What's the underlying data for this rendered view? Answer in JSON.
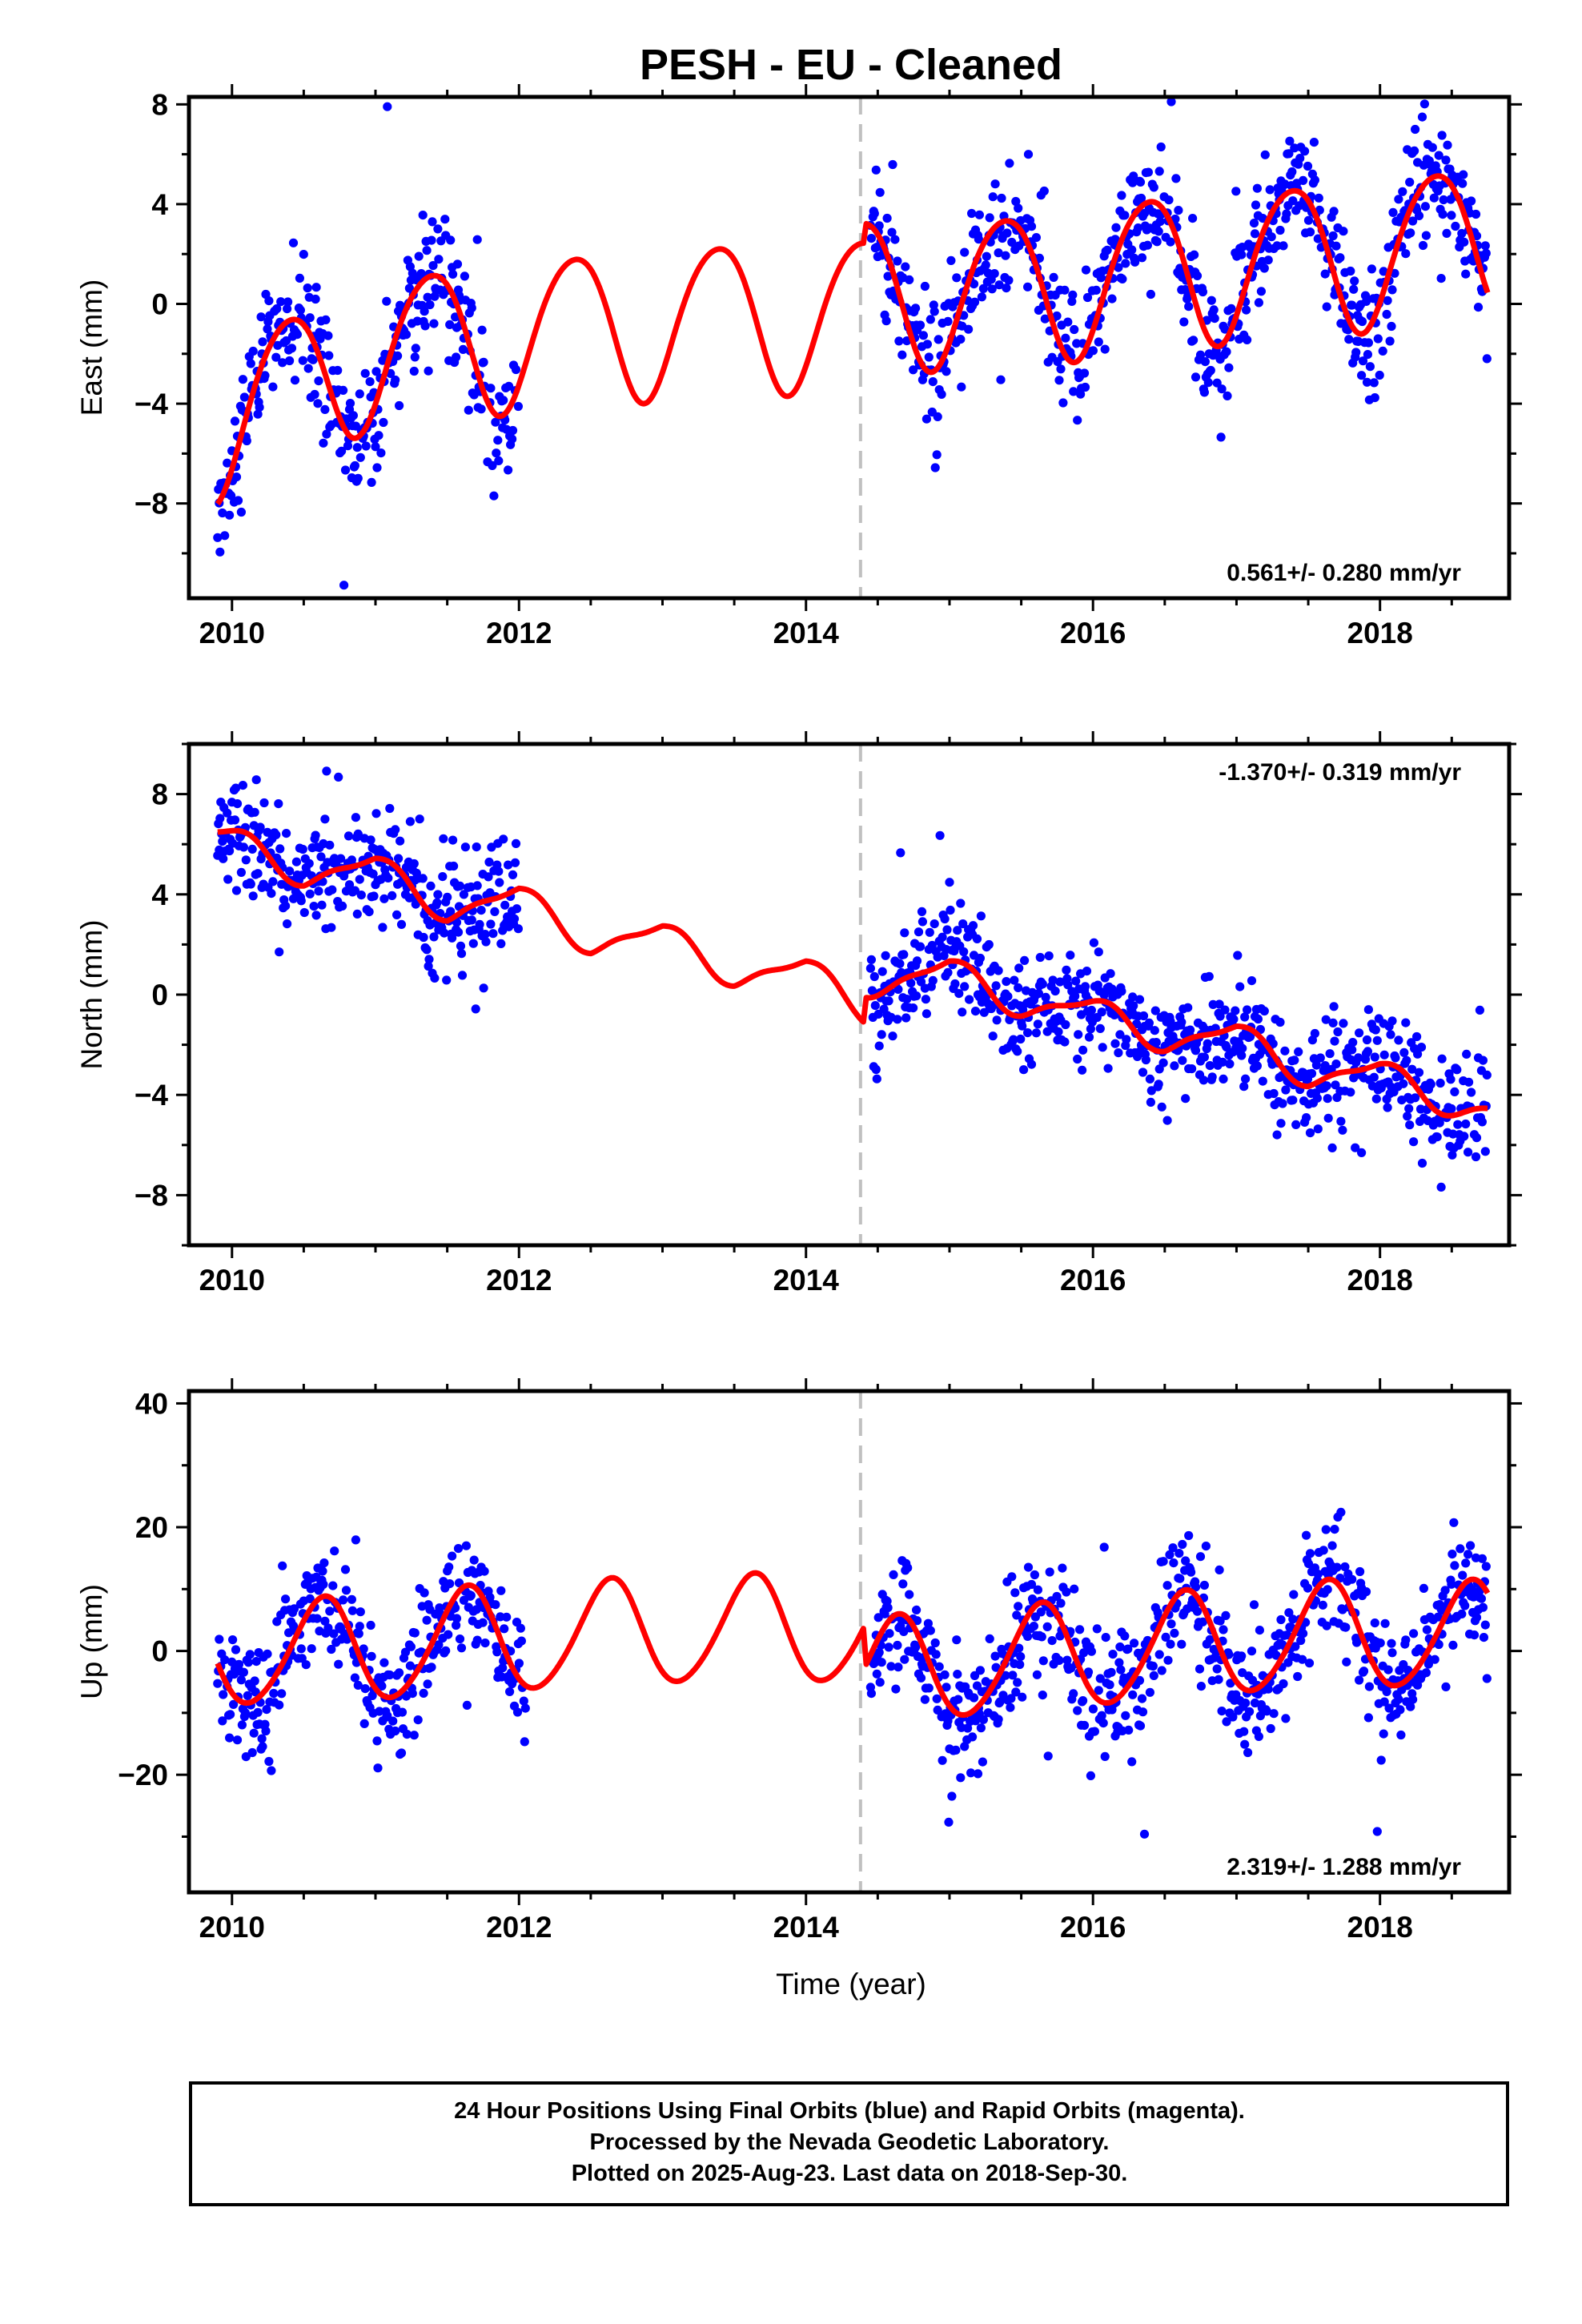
{
  "figure": {
    "title": "PESH  - EU - Cleaned",
    "footer_lines": [
      "24 Hour Positions Using Final Orbits (blue) and Rapid Orbits (magenta).",
      "Processed by the Nevada Geodetic Laboratory.",
      "Plotted on 2025-Aug-23. Last data on 2018-Sep-30."
    ]
  },
  "colors": {
    "data_points": "#0000ff",
    "model_line": "#ff0000",
    "equipment_change_line": "#c0c0c0",
    "frame": "#000000"
  },
  "chart_data": [
    {
      "type": "scatter",
      "id": "east",
      "ylabel": "East (mm)",
      "xlabel": "",
      "xlim": [
        2009.7,
        2018.9
      ],
      "ylim": [
        -11.8,
        8.3
      ],
      "xticks": [
        2010,
        2012,
        2014,
        2016,
        2018
      ],
      "yticks": [
        -8,
        -4,
        0,
        4,
        8
      ],
      "rate_label": "0.561+/- 0.280 mm/yr",
      "rate_position": "bottom-right",
      "offset_year": 2014.38,
      "series": [
        {
          "name": "",
          "kind": "points",
          "segments": [
            [
              2009.9,
              2012.0
            ],
            [
              2014.45,
              2018.75
            ]
          ],
          "noise": 1.3
        },
        {
          "name": "",
          "kind": "model",
          "color": "red",
          "start": 2009.9,
          "end": 2018.75
        }
      ],
      "model": {
        "base": [
          [
            2009.9,
            -4.8
          ],
          [
            2010.9,
            -2.0
          ],
          [
            2011.9,
            -1.2
          ],
          [
            2013.1,
            -0.6
          ],
          [
            2014.4,
            -0.3
          ],
          [
            2014.42,
            0.5
          ],
          [
            2015.45,
            0.6
          ],
          [
            2016.45,
            1.4
          ],
          [
            2017.4,
            1.8
          ],
          [
            2018.75,
            2.6
          ]
        ],
        "annual_amp": 3.0,
        "annual_peak": 0.38,
        "semi_amp": 0.3,
        "semi_peak": 0.1
      }
    },
    {
      "type": "scatter",
      "id": "north",
      "ylabel": "North (mm)",
      "xlabel": "",
      "xlim": [
        2009.7,
        2018.9
      ],
      "ylim": [
        -10.0,
        10.0
      ],
      "xticks": [
        2010,
        2012,
        2014,
        2016,
        2018
      ],
      "yticks": [
        -8,
        -4,
        0,
        4,
        8
      ],
      "rate_label": "-1.370+/- 0.319 mm/yr",
      "rate_position": "top-right",
      "offset_year": 2014.38,
      "series": [
        {
          "name": "",
          "kind": "points",
          "segments": [
            [
              2009.9,
              2012.0
            ],
            [
              2014.45,
              2018.75
            ]
          ],
          "noise": 1.1
        },
        {
          "name": "",
          "kind": "model",
          "color": "red",
          "start": 2009.9,
          "end": 2018.75
        }
      ],
      "model": {
        "base": [
          [
            2009.9,
            6.2
          ],
          [
            2010.5,
            5.0
          ],
          [
            2011.0,
            4.9
          ],
          [
            2011.5,
            3.6
          ],
          [
            2012.0,
            3.7
          ],
          [
            2012.5,
            2.3
          ],
          [
            2013.0,
            2.2
          ],
          [
            2013.5,
            1.0
          ],
          [
            2014.0,
            0.8
          ],
          [
            2014.4,
            -0.4
          ],
          [
            2014.42,
            0.6
          ],
          [
            2015.0,
            0.8
          ],
          [
            2015.5,
            -0.2
          ],
          [
            2016.0,
            -0.8
          ],
          [
            2016.5,
            -1.6
          ],
          [
            2017.0,
            -1.8
          ],
          [
            2017.5,
            -3.0
          ],
          [
            2018.0,
            -3.3
          ],
          [
            2018.75,
            -4.6
          ]
        ],
        "annual_amp": 0.6,
        "annual_peak": 0.0,
        "semi_amp": 0.2,
        "semi_peak": 0.15
      }
    },
    {
      "type": "scatter",
      "id": "up",
      "ylabel": "Up (mm)",
      "xlabel": "Time (year)",
      "xlim": [
        2009.7,
        2018.9
      ],
      "ylim": [
        -39.0,
        42.0
      ],
      "xticks": [
        2010,
        2012,
        2014,
        2016,
        2018
      ],
      "yticks": [
        -20,
        0,
        20,
        40
      ],
      "rate_label": "2.319+/- 1.288 mm/yr",
      "rate_position": "bottom-right",
      "offset_year": 2014.38,
      "series": [
        {
          "name": "",
          "kind": "points",
          "segments": [
            [
              2009.9,
              2012.05
            ],
            [
              2014.45,
              2018.75
            ]
          ],
          "noise": 4.8
        },
        {
          "name": "",
          "kind": "model",
          "color": "red",
          "start": 2009.9,
          "end": 2018.75
        }
      ],
      "model": {
        "base": [
          [
            2009.9,
            -0.3
          ],
          [
            2010.6,
            -0.3
          ],
          [
            2011.6,
            1.5
          ],
          [
            2012.5,
            2.6
          ],
          [
            2013.5,
            3.6
          ],
          [
            2014.4,
            3.2
          ],
          [
            2014.42,
            -3.5
          ],
          [
            2015.5,
            -1.5
          ],
          [
            2016.5,
            0.5
          ],
          [
            2017.5,
            2.5
          ],
          [
            2018.75,
            2.5
          ]
        ],
        "annual_amp": 8.5,
        "annual_peak": 0.63,
        "semi_amp": 0.8,
        "semi_peak": 0.2
      }
    }
  ]
}
